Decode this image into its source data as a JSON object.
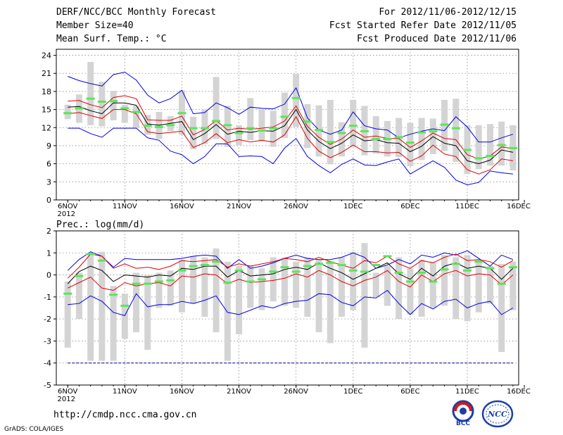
{
  "header": {
    "title": "DERF/NCC/BCC Monthly Forecast",
    "member": "Member Size=40",
    "variable": "Mean Surf. Temp.: °C",
    "period": "For 2012/11/06-2012/12/15",
    "start": "Fcst Started Refer Date 2012/11/05",
    "produced": "Fcst Produced Date 2012/11/06"
  },
  "footer": {
    "url": "http://cmdp.ncc.cma.gov.cn",
    "credit": "GrADS: COLA/IGES"
  },
  "logos": {
    "bcc": "BCC",
    "ncc": "NCC"
  },
  "colors": {
    "box": "#d4d4d4",
    "median": "#5ae65a",
    "mean": "#000000",
    "spread": "#e00000",
    "extreme": "#0000e6",
    "floor": "#000080",
    "grid": "#888888"
  },
  "chart_data": [
    {
      "type": "box",
      "id": "temperature",
      "title": "Mean Surf. Temp.: °C",
      "xlabel": "Date",
      "ylabel": "°C",
      "ylim": [
        0,
        25
      ],
      "yticks": [
        0,
        3,
        6,
        9,
        12,
        15,
        18,
        21,
        24
      ],
      "xlim": [
        0,
        40
      ],
      "xticks": [
        {
          "x": 1,
          "label": "6NOV",
          "sub": "2012"
        },
        {
          "x": 6,
          "label": "11NOV"
        },
        {
          "x": 11,
          "label": "16NOV"
        },
        {
          "x": 16,
          "label": "21NOV"
        },
        {
          "x": 21,
          "label": "26NOV"
        },
        {
          "x": 26,
          "label": "1DEC"
        },
        {
          "x": 31,
          "label": "6DEC"
        },
        {
          "x": 36,
          "label": "11DEC"
        },
        {
          "x": 41,
          "label": "16DEC"
        }
      ],
      "days": [
        1,
        2,
        3,
        4,
        5,
        6,
        7,
        8,
        9,
        10,
        11,
        12,
        13,
        14,
        15,
        16,
        17,
        18,
        19,
        20,
        21,
        22,
        23,
        24,
        25,
        26,
        27,
        28,
        29,
        30,
        31,
        32,
        33,
        34,
        35,
        36,
        37,
        38,
        39,
        40
      ],
      "max": [
        20.5,
        19.8,
        19.3,
        18.9,
        20.8,
        21.2,
        19.9,
        17.4,
        16.1,
        16.8,
        18.2,
        14.3,
        14.5,
        16.1,
        15.3,
        14.2,
        15.4,
        15.2,
        15.1,
        15.9,
        18.6,
        13.6,
        11.6,
        10.9,
        11.6,
        14.6,
        12.3,
        11.8,
        11.6,
        10.3,
        10.9,
        11.4,
        11.8,
        11.5,
        13.8,
        12.1,
        9.6,
        9.6,
        10.3,
        10.9
      ],
      "box_hi": [
        15.8,
        17.5,
        22.9,
        19.6,
        18.1,
        15.8,
        15.6,
        14.1,
        14.6,
        13.9,
        18.2,
        13.8,
        15.0,
        20.4,
        15.6,
        12.4,
        16.9,
        15.0,
        14.8,
        17.8,
        20.9,
        15.9,
        15.7,
        16.6,
        12.9,
        16.6,
        15.6,
        13.9,
        13.1,
        13.6,
        12.8,
        13.6,
        13.5,
        16.6,
        16.8,
        12.4,
        12.4,
        12.6,
        13.0,
        12.4
      ],
      "box_lo": [
        13.4,
        12.8,
        12.4,
        12.2,
        13.2,
        12.8,
        11.9,
        10.8,
        10.1,
        11.4,
        10.8,
        8.4,
        9.3,
        10.1,
        8.8,
        9.1,
        9.9,
        9.7,
        8.8,
        10.3,
        12.1,
        8.6,
        7.2,
        5.9,
        7.2,
        8.8,
        7.4,
        7.7,
        7.2,
        7.1,
        5.6,
        6.6,
        7.6,
        8.1,
        6.3,
        4.3,
        5.1,
        5.7,
        5.7,
        4.9
      ],
      "median": [
        14.4,
        15.2,
        16.8,
        16.3,
        16.4,
        15.2,
        14.6,
        12.3,
        12.1,
        12.4,
        14.4,
        11.9,
        11.9,
        13.1,
        12.4,
        11.1,
        11.9,
        11.5,
        11.9,
        13.8,
        16.9,
        13.0,
        11.6,
        9.6,
        11.1,
        12.3,
        11.4,
        10.1,
        10.1,
        10.4,
        9.5,
        11.2,
        11.4,
        12.5,
        11.9,
        8.3,
        6.9,
        7.3,
        9.1,
        8.6
      ],
      "mean": [
        15.4,
        15.5,
        14.8,
        14.3,
        16.1,
        16.1,
        15.7,
        12.6,
        12.4,
        12.7,
        13.0,
        10.0,
        11.0,
        12.5,
        10.9,
        11.4,
        11.2,
        11.5,
        11.4,
        12.3,
        15.0,
        11.6,
        9.7,
        8.5,
        9.4,
        10.8,
        9.8,
        10.0,
        9.5,
        9.4,
        8.0,
        8.9,
        10.5,
        9.4,
        9.0,
        6.5,
        6.0,
        6.6,
        8.3,
        7.9
      ],
      "upper": [
        16.4,
        16.5,
        15.8,
        15.3,
        17.0,
        17.3,
        16.8,
        13.3,
        13.2,
        13.2,
        13.9,
        10.8,
        11.7,
        13.2,
        11.6,
        11.9,
        11.7,
        11.9,
        12.1,
        13.1,
        15.6,
        12.2,
        10.4,
        9.2,
        10.1,
        11.6,
        10.4,
        10.6,
        10.2,
        10.2,
        8.7,
        9.8,
        11.1,
        10.2,
        10.0,
        7.5,
        6.8,
        7.3,
        8.8,
        8.5
      ],
      "lower": [
        14.3,
        14.5,
        14.0,
        13.5,
        15.0,
        15.0,
        14.3,
        11.3,
        11.0,
        11.2,
        11.4,
        8.7,
        9.5,
        11.0,
        9.5,
        10.0,
        9.6,
        9.9,
        9.6,
        10.8,
        13.8,
        10.2,
        8.1,
        7.0,
        7.9,
        9.1,
        8.0,
        8.0,
        7.8,
        7.9,
        6.4,
        7.3,
        9.1,
        7.6,
        7.2,
        5.0,
        4.3,
        5.0,
        6.8,
        6.5
      ],
      "min": [
        11.9,
        11.9,
        11.0,
        10.4,
        11.9,
        11.9,
        11.9,
        10.3,
        9.9,
        8.1,
        7.5,
        6.0,
        7.2,
        9.3,
        9.3,
        7.2,
        7.3,
        7.2,
        6.0,
        8.6,
        10.2,
        7.2,
        5.7,
        4.5,
        5.9,
        6.8,
        5.8,
        5.7,
        6.3,
        6.8,
        4.3,
        5.4,
        6.5,
        5.4,
        3.3,
        2.5,
        2.9,
        4.8,
        4.5,
        4.3
      ]
    },
    {
      "type": "box",
      "id": "precipitation",
      "title": "Prec.: log(mm/d)",
      "xlabel": "Date",
      "ylabel": "log(mm/d)",
      "ylim": [
        -5,
        2
      ],
      "yticks": [
        -5,
        -4,
        -3,
        -2,
        -1,
        0,
        1,
        2
      ],
      "xlim": [
        0,
        40
      ],
      "xticks": [
        {
          "x": 1,
          "label": "6NOV",
          "sub": "2012"
        },
        {
          "x": 6,
          "label": "11NOV"
        },
        {
          "x": 11,
          "label": "16NOV"
        },
        {
          "x": 16,
          "label": "21NOV"
        },
        {
          "x": 21,
          "label": "26NOV"
        },
        {
          "x": 26,
          "label": "1DEC"
        },
        {
          "x": 31,
          "label": "6DEC"
        },
        {
          "x": 36,
          "label": "11DEC"
        },
        {
          "x": 41,
          "label": "16DEC"
        }
      ],
      "floor": -4,
      "days": [
        1,
        2,
        3,
        4,
        5,
        6,
        7,
        8,
        9,
        10,
        11,
        12,
        13,
        14,
        15,
        16,
        17,
        18,
        19,
        20,
        21,
        22,
        23,
        24,
        25,
        26,
        27,
        28,
        29,
        30,
        31,
        32,
        33,
        34,
        35,
        36,
        37,
        38,
        39,
        40
      ],
      "max": [
        0.2,
        0.7,
        1.05,
        0.85,
        0.35,
        0.75,
        0.7,
        0.7,
        0.7,
        0.7,
        0.75,
        0.85,
        0.9,
        0.85,
        0.3,
        0.7,
        0.3,
        0.4,
        0.55,
        0.75,
        0.9,
        0.75,
        0.7,
        0.7,
        0.8,
        1.0,
        0.8,
        0.3,
        0.45,
        0.7,
        0.5,
        0.9,
        0.8,
        1.0,
        0.9,
        1.1,
        0.75,
        0.4,
        0.9,
        0.7
      ],
      "box_hi": [
        -0.3,
        0.1,
        1.0,
        1.05,
        -0.5,
        -0.85,
        0.1,
        0.0,
        0.1,
        0.2,
        0.7,
        0.85,
        0.8,
        1.2,
        0.6,
        0.4,
        0.45,
        0.3,
        0.8,
        0.8,
        0.6,
        0.8,
        0.7,
        0.65,
        0.8,
        1.05,
        1.45,
        0.1,
        0.4,
        0.8,
        0.3,
        0.7,
        0.6,
        0.9,
        0.8,
        0.9,
        0.7,
        0.4,
        0.5,
        0.6
      ],
      "box_lo": [
        -3.3,
        -2.0,
        -3.9,
        -3.9,
        -3.9,
        -2.9,
        -2.6,
        -3.4,
        -1.5,
        -1.4,
        -1.7,
        -1.3,
        -1.9,
        -2.6,
        -3.9,
        -2.7,
        -1.5,
        -1.6,
        -1.2,
        -1.4,
        -1.5,
        -1.9,
        -2.6,
        -3.1,
        -1.9,
        -1.6,
        -3.3,
        -1.0,
        -1.4,
        -2.0,
        -1.8,
        -1.9,
        -1.5,
        -1.4,
        -2.0,
        -2.1,
        -1.7,
        -1.3,
        -3.5,
        -1.6
      ],
      "median": [
        -0.85,
        -0.05,
        0.95,
        0.65,
        -0.9,
        -1.4,
        -0.4,
        -0.4,
        -0.3,
        -0.25,
        0.2,
        0.4,
        0.45,
        0.6,
        -0.35,
        0.2,
        -0.3,
        -0.2,
        0.15,
        0.35,
        0.15,
        0.4,
        0.5,
        0.55,
        0.45,
        0.2,
        0.15,
        0.45,
        0.85,
        0.1,
        -0.3,
        0.1,
        -0.3,
        0.25,
        0.5,
        0.2,
        0.6,
        0.3,
        -0.4,
        0.35
      ],
      "mean": [
        -0.4,
        0.15,
        0.4,
        0.2,
        -0.3,
        0.0,
        -0.05,
        -0.1,
        0.0,
        -0.05,
        0.3,
        0.25,
        0.4,
        0.4,
        -0.1,
        0.2,
        -0.05,
        0.0,
        0.05,
        0.25,
        0.35,
        0.25,
        0.55,
        0.3,
        0.1,
        -0.2,
        0.05,
        0.3,
        0.55,
        0.05,
        -0.2,
        0.3,
        -0.05,
        0.4,
        0.55,
        0.3,
        0.4,
        0.3,
        -0.2,
        0.3
      ],
      "upper": [
        -0.15,
        0.35,
        0.95,
        0.85,
        0.3,
        0.5,
        0.3,
        0.35,
        0.25,
        0.4,
        0.65,
        0.6,
        0.65,
        0.7,
        0.35,
        0.5,
        0.4,
        0.5,
        0.6,
        0.75,
        0.7,
        0.6,
        0.8,
        0.6,
        0.45,
        0.3,
        0.65,
        0.55,
        0.85,
        0.5,
        0.3,
        0.65,
        0.55,
        0.8,
        0.95,
        0.65,
        0.7,
        0.6,
        0.35,
        0.65
      ],
      "lower": [
        -0.6,
        -0.35,
        -0.1,
        -0.6,
        -0.7,
        -0.35,
        -0.5,
        -0.4,
        -0.35,
        -0.5,
        -0.05,
        -0.1,
        0.05,
        0.0,
        -0.4,
        -0.2,
        -0.35,
        -0.3,
        -0.25,
        -0.15,
        0.05,
        -0.1,
        0.2,
        0.0,
        -0.3,
        -0.5,
        -0.25,
        -0.1,
        0.2,
        -0.3,
        -0.55,
        0.0,
        -0.3,
        0.05,
        0.2,
        -0.05,
        0.05,
        0.0,
        -0.45,
        0.0
      ],
      "min": [
        -1.35,
        -1.3,
        -0.95,
        -1.2,
        -1.7,
        -1.85,
        -0.85,
        -1.45,
        -1.35,
        -1.35,
        -1.2,
        -1.3,
        -1.15,
        -0.95,
        -1.7,
        -1.8,
        -1.6,
        -1.4,
        -1.5,
        -1.3,
        -1.2,
        -1.15,
        -0.85,
        -0.9,
        -1.25,
        -1.4,
        -1.0,
        -1.05,
        -0.7,
        -1.3,
        -1.8,
        -1.3,
        -1.55,
        -1.2,
        -1.1,
        -1.5,
        -1.3,
        -1.2,
        -1.8,
        -1.5
      ]
    }
  ]
}
